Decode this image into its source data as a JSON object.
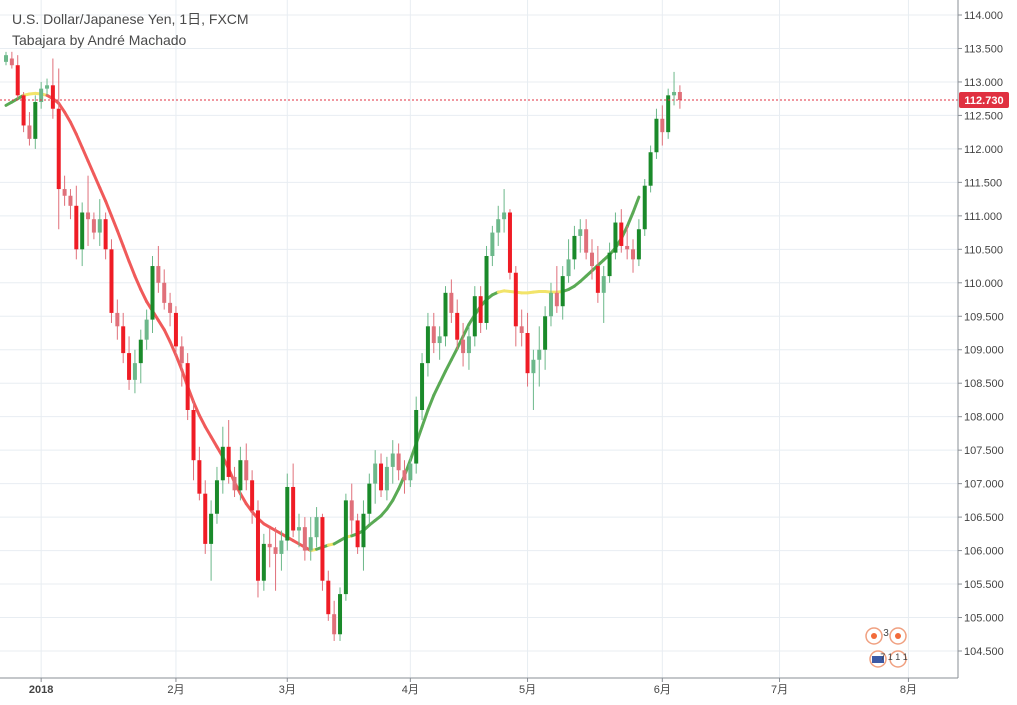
{
  "header": {
    "symbol_line": "U.S. Dollar/Japanese Yen, 1日, FXCM",
    "indicator_line": "Tabajara by André Machado"
  },
  "colors": {
    "bull": "#1a8a2a",
    "bull_light": "#6cb88a",
    "bear": "#ef1c25",
    "bear_light": "#e0707a",
    "ma_bear": "#f05a5a",
    "ma_bull": "#5aaa55",
    "ma_neutral": "#f2e46a",
    "grid": "#e8edf2",
    "price_line": "#e03040",
    "price_tag": "#e03040"
  },
  "footer_badges": {
    "events_count": "3",
    "calendar_text": "7 1 1 1"
  },
  "chart_data": {
    "type": "candlestick",
    "title": "U.S. Dollar/Japanese Yen, 1日, FXCM",
    "subtitle": "Tabajara by André Machado",
    "ylim": [
      104.2,
      114.1
    ],
    "y_ticks": [
      "114.000",
      "113.500",
      "113.000",
      "112.500",
      "112.000",
      "111.500",
      "111.000",
      "110.500",
      "110.000",
      "109.500",
      "109.000",
      "108.500",
      "108.000",
      "107.500",
      "107.000",
      "106.500",
      "106.000",
      "105.500",
      "105.000",
      "104.500"
    ],
    "x_ticks": [
      {
        "label": "2018",
        "bar": 6
      },
      {
        "label": "2月",
        "bar": 29
      },
      {
        "label": "3月",
        "bar": 48
      },
      {
        "label": "4月",
        "bar": 69
      },
      {
        "label": "5月",
        "bar": 89
      },
      {
        "label": "6月",
        "bar": 112
      },
      {
        "label": "7月",
        "bar": 132
      },
      {
        "label": "8月",
        "bar": 154
      }
    ],
    "last_price": "112.730",
    "last_price_value": 112.73,
    "candles": [
      [
        113.3,
        113.45,
        113.25,
        113.4
      ],
      [
        113.35,
        113.45,
        113.2,
        113.25
      ],
      [
        113.25,
        113.4,
        112.75,
        112.8
      ],
      [
        112.8,
        112.85,
        112.25,
        112.35
      ],
      [
        112.35,
        112.55,
        112.05,
        112.15
      ],
      [
        112.15,
        112.8,
        112.0,
        112.7
      ],
      [
        112.7,
        113.0,
        112.6,
        112.9
      ],
      [
        112.9,
        113.05,
        112.8,
        112.95
      ],
      [
        112.95,
        113.35,
        112.45,
        112.6
      ],
      [
        112.6,
        113.2,
        110.8,
        111.4
      ],
      [
        111.4,
        111.6,
        111.15,
        111.3
      ],
      [
        111.3,
        111.4,
        110.95,
        111.15
      ],
      [
        111.15,
        111.45,
        110.35,
        110.5
      ],
      [
        110.5,
        111.2,
        110.25,
        111.05
      ],
      [
        111.05,
        111.6,
        110.55,
        110.95
      ],
      [
        110.95,
        111.05,
        110.65,
        110.75
      ],
      [
        110.75,
        111.25,
        110.55,
        110.95
      ],
      [
        110.95,
        111.05,
        110.35,
        110.5
      ],
      [
        110.5,
        110.65,
        109.4,
        109.55
      ],
      [
        109.55,
        109.75,
        109.15,
        109.35
      ],
      [
        109.35,
        109.55,
        108.8,
        108.95
      ],
      [
        108.95,
        109.2,
        108.4,
        108.55
      ],
      [
        108.55,
        109.0,
        108.35,
        108.8
      ],
      [
        108.8,
        109.3,
        108.5,
        109.15
      ],
      [
        109.15,
        109.6,
        109.0,
        109.45
      ],
      [
        109.45,
        110.4,
        109.25,
        110.25
      ],
      [
        110.25,
        110.55,
        109.85,
        110.0
      ],
      [
        110.0,
        110.2,
        109.6,
        109.7
      ],
      [
        109.7,
        109.85,
        109.35,
        109.55
      ],
      [
        109.55,
        109.65,
        108.9,
        109.05
      ],
      [
        109.05,
        109.2,
        108.45,
        108.8
      ],
      [
        108.8,
        108.95,
        107.95,
        108.1
      ],
      [
        108.1,
        108.25,
        107.05,
        107.35
      ],
      [
        107.35,
        107.55,
        106.75,
        106.85
      ],
      [
        106.85,
        107.05,
        105.95,
        106.1
      ],
      [
        106.1,
        106.75,
        105.55,
        106.55
      ],
      [
        106.55,
        107.25,
        106.4,
        107.05
      ],
      [
        107.05,
        107.85,
        106.85,
        107.55
      ],
      [
        107.55,
        107.95,
        107.0,
        107.1
      ],
      [
        107.1,
        107.25,
        106.8,
        106.9
      ],
      [
        106.9,
        107.55,
        106.75,
        107.35
      ],
      [
        107.35,
        107.6,
        106.9,
        107.05
      ],
      [
        107.05,
        107.2,
        106.4,
        106.6
      ],
      [
        106.6,
        106.75,
        105.3,
        105.55
      ],
      [
        105.55,
        106.25,
        105.4,
        106.1
      ],
      [
        106.1,
        106.35,
        105.75,
        106.05
      ],
      [
        106.05,
        106.35,
        105.4,
        105.95
      ],
      [
        105.95,
        106.3,
        105.7,
        106.15
      ],
      [
        106.15,
        107.15,
        106.0,
        106.95
      ],
      [
        106.95,
        107.3,
        106.2,
        106.3
      ],
      [
        106.3,
        106.55,
        106.05,
        106.35
      ],
      [
        106.35,
        106.5,
        105.85,
        106.0
      ],
      [
        106.0,
        106.5,
        105.85,
        106.2
      ],
      [
        106.2,
        106.65,
        106.05,
        106.5
      ],
      [
        106.5,
        106.55,
        105.4,
        105.55
      ],
      [
        105.55,
        105.7,
        104.95,
        105.05
      ],
      [
        105.05,
        105.25,
        104.65,
        104.75
      ],
      [
        104.75,
        105.45,
        104.65,
        105.35
      ],
      [
        105.35,
        106.85,
        105.25,
        106.75
      ],
      [
        106.75,
        107.0,
        106.25,
        106.45
      ],
      [
        106.45,
        106.55,
        105.95,
        106.05
      ],
      [
        106.05,
        106.75,
        105.7,
        106.55
      ],
      [
        106.55,
        107.15,
        106.4,
        107.0
      ],
      [
        107.0,
        107.5,
        106.7,
        107.3
      ],
      [
        107.3,
        107.45,
        106.8,
        106.9
      ],
      [
        106.9,
        107.4,
        106.75,
        107.25
      ],
      [
        107.25,
        107.65,
        107.0,
        107.45
      ],
      [
        107.45,
        107.6,
        107.05,
        107.2
      ],
      [
        107.2,
        107.35,
        106.85,
        107.05
      ],
      [
        107.05,
        107.4,
        106.95,
        107.3
      ],
      [
        107.3,
        108.3,
        107.15,
        108.1
      ],
      [
        108.1,
        108.95,
        107.95,
        108.8
      ],
      [
        108.8,
        109.55,
        108.6,
        109.35
      ],
      [
        109.35,
        109.55,
        108.95,
        109.1
      ],
      [
        109.1,
        109.35,
        108.85,
        109.2
      ],
      [
        109.2,
        109.95,
        109.05,
        109.85
      ],
      [
        109.85,
        110.05,
        109.4,
        109.55
      ],
      [
        109.55,
        109.75,
        109.0,
        109.15
      ],
      [
        109.15,
        109.4,
        108.75,
        108.95
      ],
      [
        108.95,
        109.35,
        108.7,
        109.2
      ],
      [
        109.2,
        109.95,
        109.05,
        109.8
      ],
      [
        109.8,
        109.95,
        109.25,
        109.4
      ],
      [
        109.4,
        110.55,
        109.3,
        110.4
      ],
      [
        110.4,
        110.85,
        110.25,
        110.75
      ],
      [
        110.75,
        111.15,
        110.55,
        110.95
      ],
      [
        110.95,
        111.4,
        110.75,
        111.05
      ],
      [
        111.05,
        111.1,
        110.05,
        110.15
      ],
      [
        110.15,
        110.25,
        109.05,
        109.35
      ],
      [
        109.35,
        109.6,
        109.05,
        109.25
      ],
      [
        109.25,
        109.55,
        108.45,
        108.65
      ],
      [
        108.65,
        109.0,
        108.1,
        108.85
      ],
      [
        108.85,
        109.35,
        108.45,
        109.0
      ],
      [
        109.0,
        109.65,
        108.7,
        109.5
      ],
      [
        109.5,
        110.0,
        109.35,
        109.85
      ],
      [
        109.85,
        110.25,
        109.55,
        109.65
      ],
      [
        109.65,
        110.25,
        109.45,
        110.1
      ],
      [
        110.1,
        110.65,
        110.0,
        110.35
      ],
      [
        110.35,
        110.85,
        110.2,
        110.7
      ],
      [
        110.7,
        110.95,
        110.45,
        110.8
      ],
      [
        110.8,
        110.95,
        110.35,
        110.45
      ],
      [
        110.45,
        110.65,
        110.05,
        110.25
      ],
      [
        110.25,
        110.55,
        109.7,
        109.85
      ],
      [
        109.85,
        110.25,
        109.4,
        110.1
      ],
      [
        110.1,
        110.6,
        110.0,
        110.45
      ],
      [
        110.45,
        111.05,
        110.35,
        110.9
      ],
      [
        110.9,
        111.1,
        110.45,
        110.55
      ],
      [
        110.55,
        110.85,
        110.35,
        110.5
      ],
      [
        110.5,
        110.65,
        110.15,
        110.35
      ],
      [
        110.35,
        110.95,
        110.25,
        110.8
      ],
      [
        110.8,
        111.55,
        110.7,
        111.45
      ],
      [
        111.45,
        112.05,
        111.35,
        111.95
      ],
      [
        111.95,
        112.6,
        111.85,
        112.45
      ],
      [
        112.45,
        112.65,
        112.05,
        112.25
      ],
      [
        112.25,
        112.9,
        112.15,
        112.8
      ],
      [
        112.8,
        113.15,
        112.65,
        112.85
      ],
      [
        112.85,
        112.95,
        112.6,
        112.73
      ]
    ],
    "ma": [
      112.65,
      112.7,
      112.75,
      112.8,
      112.82,
      112.83,
      112.82,
      112.8,
      112.75,
      112.68,
      112.55,
      112.4,
      112.22,
      112.02,
      111.82,
      111.62,
      111.42,
      111.22,
      111.0,
      110.78,
      110.55,
      110.32,
      110.1,
      109.9,
      109.72,
      109.58,
      109.44,
      109.3,
      109.12,
      108.92,
      108.7,
      108.45,
      108.22,
      108.02,
      107.85,
      107.7,
      107.55,
      107.4,
      107.22,
      107.02,
      106.85,
      106.7,
      106.58,
      106.48,
      106.4,
      106.35,
      106.3,
      106.25,
      106.2,
      106.15,
      106.1,
      106.05,
      106.0,
      106.02,
      106.05,
      106.08,
      106.1,
      106.15,
      106.2,
      106.22,
      106.25,
      106.3,
      106.38,
      106.45,
      106.52,
      106.62,
      106.75,
      106.92,
      107.12,
      107.35,
      107.6,
      107.85,
      108.1,
      108.32,
      108.5,
      108.68,
      108.85,
      109.02,
      109.2,
      109.38,
      109.52,
      109.65,
      109.75,
      109.82,
      109.86,
      109.88,
      109.87,
      109.86,
      109.85,
      109.85,
      109.86,
      109.87,
      109.87,
      109.86,
      109.86,
      109.87,
      109.9,
      109.95,
      110.02,
      110.1,
      110.18,
      110.26,
      110.34,
      110.42,
      110.52,
      110.66,
      110.84,
      111.05,
      111.28
    ]
  }
}
